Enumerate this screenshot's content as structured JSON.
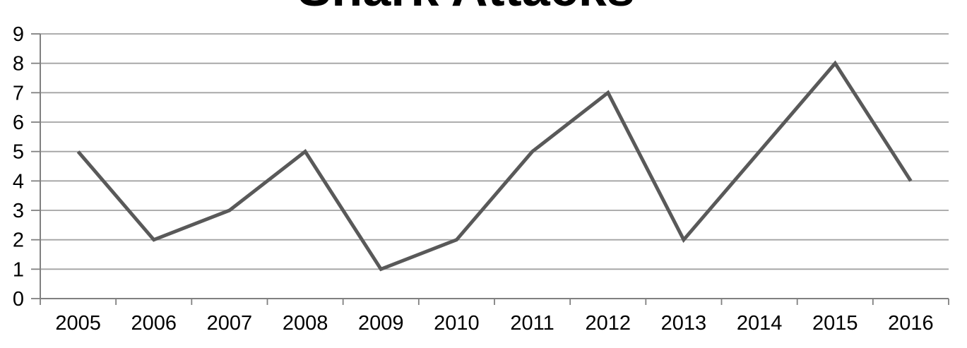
{
  "chart_data": {
    "type": "line",
    "title": "Shark Attacks",
    "categories": [
      "2005",
      "2006",
      "2007",
      "2008",
      "2009",
      "2010",
      "2011",
      "2012",
      "2013",
      "2014",
      "2015",
      "2016"
    ],
    "values": [
      5,
      2,
      3,
      5,
      1,
      2,
      5,
      7,
      2,
      5,
      8,
      4
    ],
    "xlabel": "",
    "ylabel": "",
    "ylim": [
      0,
      9
    ],
    "yticks": [
      0,
      1,
      2,
      3,
      4,
      5,
      6,
      7,
      8,
      9
    ],
    "grid": "horizontal",
    "legend": "none",
    "markers": "none",
    "colors": {
      "line": "#595959",
      "gridline": "#a3a3a3",
      "axis": "#808080",
      "tick_label": "#000000",
      "title": "#000000",
      "background": "#ffffff"
    }
  }
}
